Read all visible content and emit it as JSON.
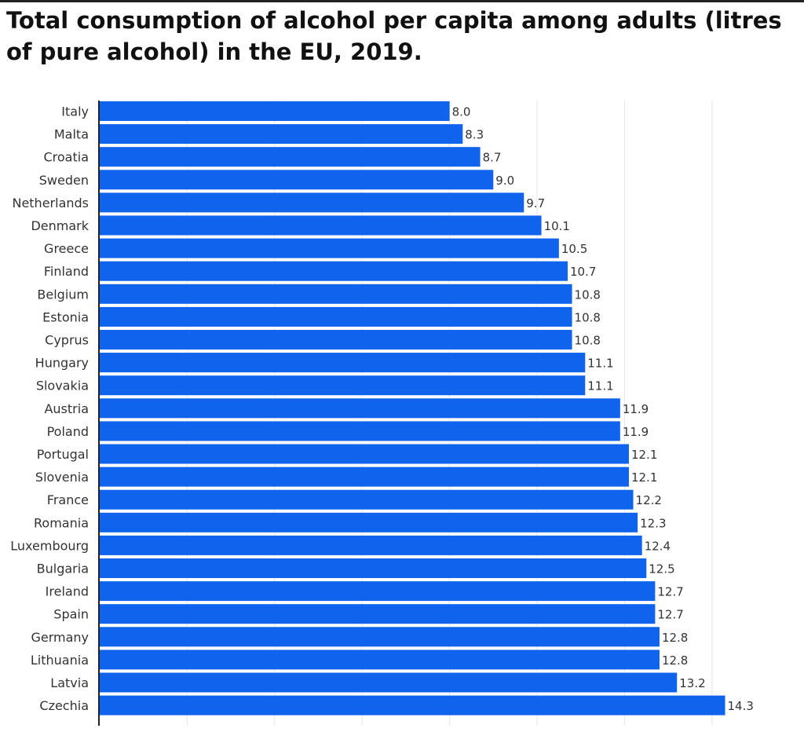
{
  "chart_data": {
    "type": "bar",
    "orientation": "horizontal",
    "title": "Total consumption of alcohol per capita among adults (litres of pure alcohol) in the EU, 2019.",
    "xlabel": "",
    "ylabel": "",
    "xlim": [
      0,
      14.5
    ],
    "grid": true,
    "bar_color": "#0F63EC",
    "categories": [
      "Italy",
      "Malta",
      "Croatia",
      "Sweden",
      "Netherlands",
      "Denmark",
      "Greece",
      "Finland",
      "Belgium",
      "Estonia",
      "Cyprus",
      "Hungary",
      "Slovakia",
      "Austria",
      "Poland",
      "Portugal",
      "Slovenia",
      "France",
      "Romania",
      "Luxembourg",
      "Bulgaria",
      "Ireland",
      "Spain",
      "Germany",
      "Lithuania",
      "Latvia",
      "Czechia"
    ],
    "values": [
      8.0,
      8.3,
      8.7,
      9.0,
      9.7,
      10.1,
      10.5,
      10.7,
      10.8,
      10.8,
      10.8,
      11.1,
      11.1,
      11.9,
      11.9,
      12.1,
      12.1,
      12.2,
      12.3,
      12.4,
      12.5,
      12.7,
      12.7,
      12.8,
      12.8,
      13.2,
      14.3
    ],
    "labels": [
      "8.0",
      "8.3",
      "8.7",
      "9.0",
      "9.7",
      "10.1",
      "10.5",
      "10.7",
      "10.8",
      "10.8",
      "10.8",
      "11.1",
      "11.1",
      "11.9",
      "11.9",
      "12.1",
      "12.1",
      "12.2",
      "12.3",
      "12.4",
      "12.5",
      "12.7",
      "12.7",
      "12.8",
      "12.8",
      "13.2",
      "14.3"
    ]
  }
}
